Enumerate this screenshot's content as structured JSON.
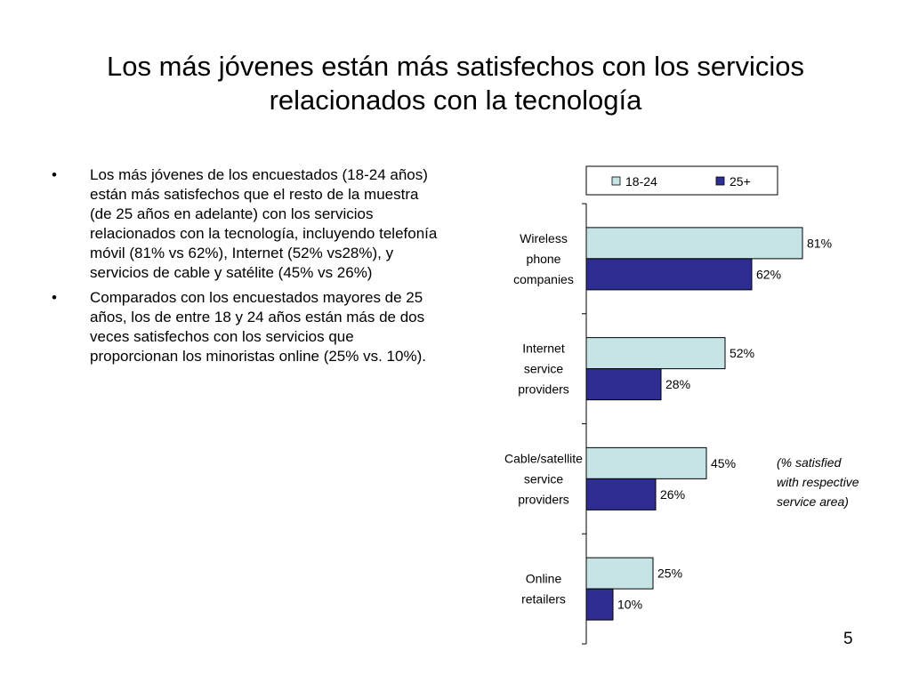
{
  "slide": {
    "title_line1": "Los más jóvenes están más satisfechos con los servicios",
    "title_line2": "relacionados con la tecnología",
    "page_number": "5"
  },
  "bullets": [
    {
      "mark": "•",
      "text": "Los más jóvenes de los encuestados (18-24 años) están más satisfechos que el resto de la muestra (de 25 años en adelante) con los servicios relacionados con la tecnología, incluyendo telefonía móvil (81% vs 62%), Internet (52% vs28%), y servicios de cable y satélite (45% vs 26%)"
    },
    {
      "mark": "•",
      "text": "Comparados con los encuestados mayores de 25 años,  los de entre 18 y 24 años están más de dos veces satisfechos con los servicios que proporcionan los minoristas online (25% vs. 10%)."
    }
  ],
  "chart_data": {
    "type": "bar",
    "orientation": "horizontal",
    "categories": [
      [
        "Wireless",
        "phone",
        "companies"
      ],
      [
        "Internet",
        "service",
        "providers"
      ],
      [
        "Cable/satellite",
        "service",
        "providers"
      ],
      [
        "Online",
        "retailers"
      ]
    ],
    "series": [
      {
        "name": "18-24",
        "color": "#c6e4e6",
        "values": [
          81,
          52,
          45,
          25
        ],
        "labels": [
          "81%",
          "52%",
          "45%",
          "25%"
        ]
      },
      {
        "name": "25+",
        "color": "#2e2e92",
        "values": [
          62,
          28,
          26,
          10
        ],
        "labels": [
          "62%",
          "28%",
          "26%",
          "10%"
        ]
      }
    ],
    "xlim": [
      0,
      100
    ],
    "grid": false,
    "legend_position": "top",
    "annotation": [
      "(% satisfied",
      "with respective",
      "service area)"
    ]
  }
}
